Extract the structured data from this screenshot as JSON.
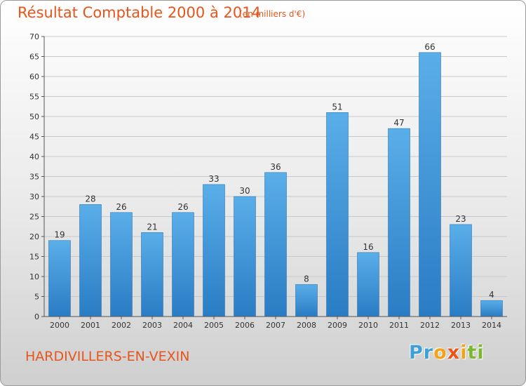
{
  "chart_data": {
    "type": "bar",
    "title": "Résultat Comptable 2000 à 2014",
    "subtitle": "(en milliers d'€)",
    "categories": [
      "2000",
      "2001",
      "2002",
      "2003",
      "2004",
      "2005",
      "2006",
      "2007",
      "2008",
      "2009",
      "2010",
      "2011",
      "2012",
      "2013",
      "2014"
    ],
    "values": [
      19,
      28,
      26,
      21,
      26,
      33,
      30,
      36,
      8,
      51,
      16,
      47,
      66,
      23,
      4
    ],
    "ylim": [
      0,
      70
    ],
    "yticks": [
      0,
      5,
      10,
      15,
      20,
      25,
      30,
      35,
      40,
      45,
      50,
      55,
      60,
      65,
      70
    ],
    "grid": true,
    "bar_color": "#3d8fd6",
    "xlabel": "",
    "ylabel": ""
  },
  "footer": {
    "commune": "HARDIVILLERS-EN-VEXIN",
    "logo_letters": [
      "P",
      "r",
      "o",
      "x",
      "i",
      "t",
      "i"
    ],
    "logo_colors": [
      "#3fa0d8",
      "#3fa0d8",
      "#f3a31b",
      "#e8541a",
      "#f3a31b",
      "#7cb82f",
      "#7cb82f"
    ]
  },
  "colors": {
    "title": "#e8541a",
    "grid": "#c8c8c8"
  }
}
